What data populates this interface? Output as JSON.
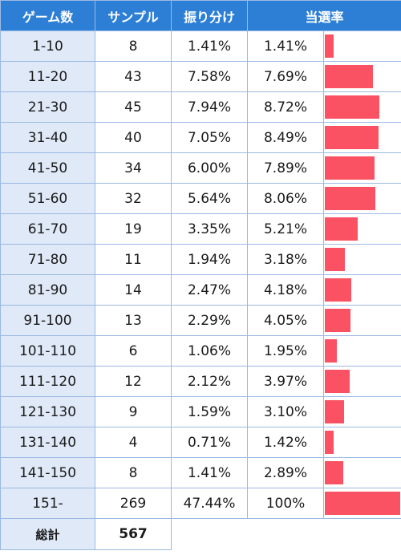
{
  "headers": [
    "ゲーム数",
    "サンプル",
    "振り分け",
    "当選率"
  ],
  "bar_color": "#fa5263",
  "header_color": "#2d7fd6",
  "rows": [
    {
      "range": "1-10",
      "sample": "8",
      "share": "1.41%",
      "rate": "1.41%",
      "rate_value": 1.41
    },
    {
      "range": "11-20",
      "sample": "43",
      "share": "7.58%",
      "rate": "7.69%",
      "rate_value": 7.69
    },
    {
      "range": "21-30",
      "sample": "45",
      "share": "7.94%",
      "rate": "8.72%",
      "rate_value": 8.72
    },
    {
      "range": "31-40",
      "sample": "40",
      "share": "7.05%",
      "rate": "8.49%",
      "rate_value": 8.49
    },
    {
      "range": "41-50",
      "sample": "34",
      "share": "6.00%",
      "rate": "7.89%",
      "rate_value": 7.89
    },
    {
      "range": "51-60",
      "sample": "32",
      "share": "5.64%",
      "rate": "8.06%",
      "rate_value": 8.06
    },
    {
      "range": "61-70",
      "sample": "19",
      "share": "3.35%",
      "rate": "5.21%",
      "rate_value": 5.21
    },
    {
      "range": "71-80",
      "sample": "11",
      "share": "1.94%",
      "rate": "3.18%",
      "rate_value": 3.18
    },
    {
      "range": "81-90",
      "sample": "14",
      "share": "2.47%",
      "rate": "4.18%",
      "rate_value": 4.18
    },
    {
      "range": "91-100",
      "sample": "13",
      "share": "2.29%",
      "rate": "4.05%",
      "rate_value": 4.05
    },
    {
      "range": "101-110",
      "sample": "6",
      "share": "1.06%",
      "rate": "1.95%",
      "rate_value": 1.95
    },
    {
      "range": "111-120",
      "sample": "12",
      "share": "2.12%",
      "rate": "3.97%",
      "rate_value": 3.97
    },
    {
      "range": "121-130",
      "sample": "9",
      "share": "1.59%",
      "rate": "3.10%",
      "rate_value": 3.1
    },
    {
      "range": "131-140",
      "sample": "4",
      "share": "0.71%",
      "rate": "1.42%",
      "rate_value": 1.42
    },
    {
      "range": "141-150",
      "sample": "8",
      "share": "1.41%",
      "rate": "2.89%",
      "rate_value": 2.89
    },
    {
      "range": "151-",
      "sample": "269",
      "share": "47.44%",
      "rate": "100%",
      "rate_value": 100
    }
  ],
  "total": {
    "label": "総計",
    "value": "567"
  }
}
